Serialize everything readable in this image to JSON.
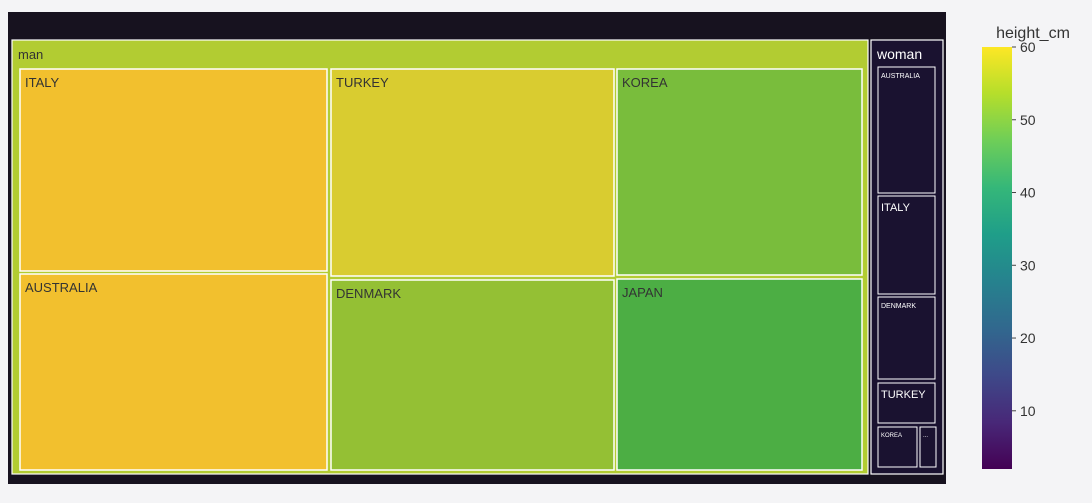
{
  "chart_data": {
    "type": "treemap",
    "title": "",
    "color_scale": {
      "title": "height_cm",
      "ticks": [
        10,
        20,
        30,
        40,
        50,
        60
      ],
      "range": [
        2,
        60
      ],
      "colors": [
        "#440154",
        "#482878",
        "#3e4989",
        "#31688e",
        "#26828e",
        "#1f9e89",
        "#35b779",
        "#6ece58",
        "#b5de2b",
        "#fde725"
      ]
    },
    "groups": [
      {
        "name": "man",
        "color": "#b2cc32",
        "items": [
          {
            "label": "ITALY",
            "color": "#f2c02e"
          },
          {
            "label": "AUSTRALIA",
            "color": "#f2c02e"
          },
          {
            "label": "TURKEY",
            "color": "#d9cc30"
          },
          {
            "label": "DENMARK",
            "color": "#94c034"
          },
          {
            "label": "KOREA",
            "color": "#79bd3c"
          },
          {
            "label": "JAPAN",
            "color": "#4cae44"
          }
        ]
      },
      {
        "name": "woman",
        "color": "#1a1230",
        "items": [
          {
            "label": "AUSTRALIA",
            "color": "#1a1230"
          },
          {
            "label": "ITALY",
            "color": "#1a1230"
          },
          {
            "label": "DENMARK",
            "color": "#1a1230"
          },
          {
            "label": "TURKEY",
            "color": "#1a1230"
          },
          {
            "label": "KOREA",
            "color": "#1a1230"
          },
          {
            "label": "...",
            "color": "#1a1230"
          }
        ]
      }
    ]
  }
}
